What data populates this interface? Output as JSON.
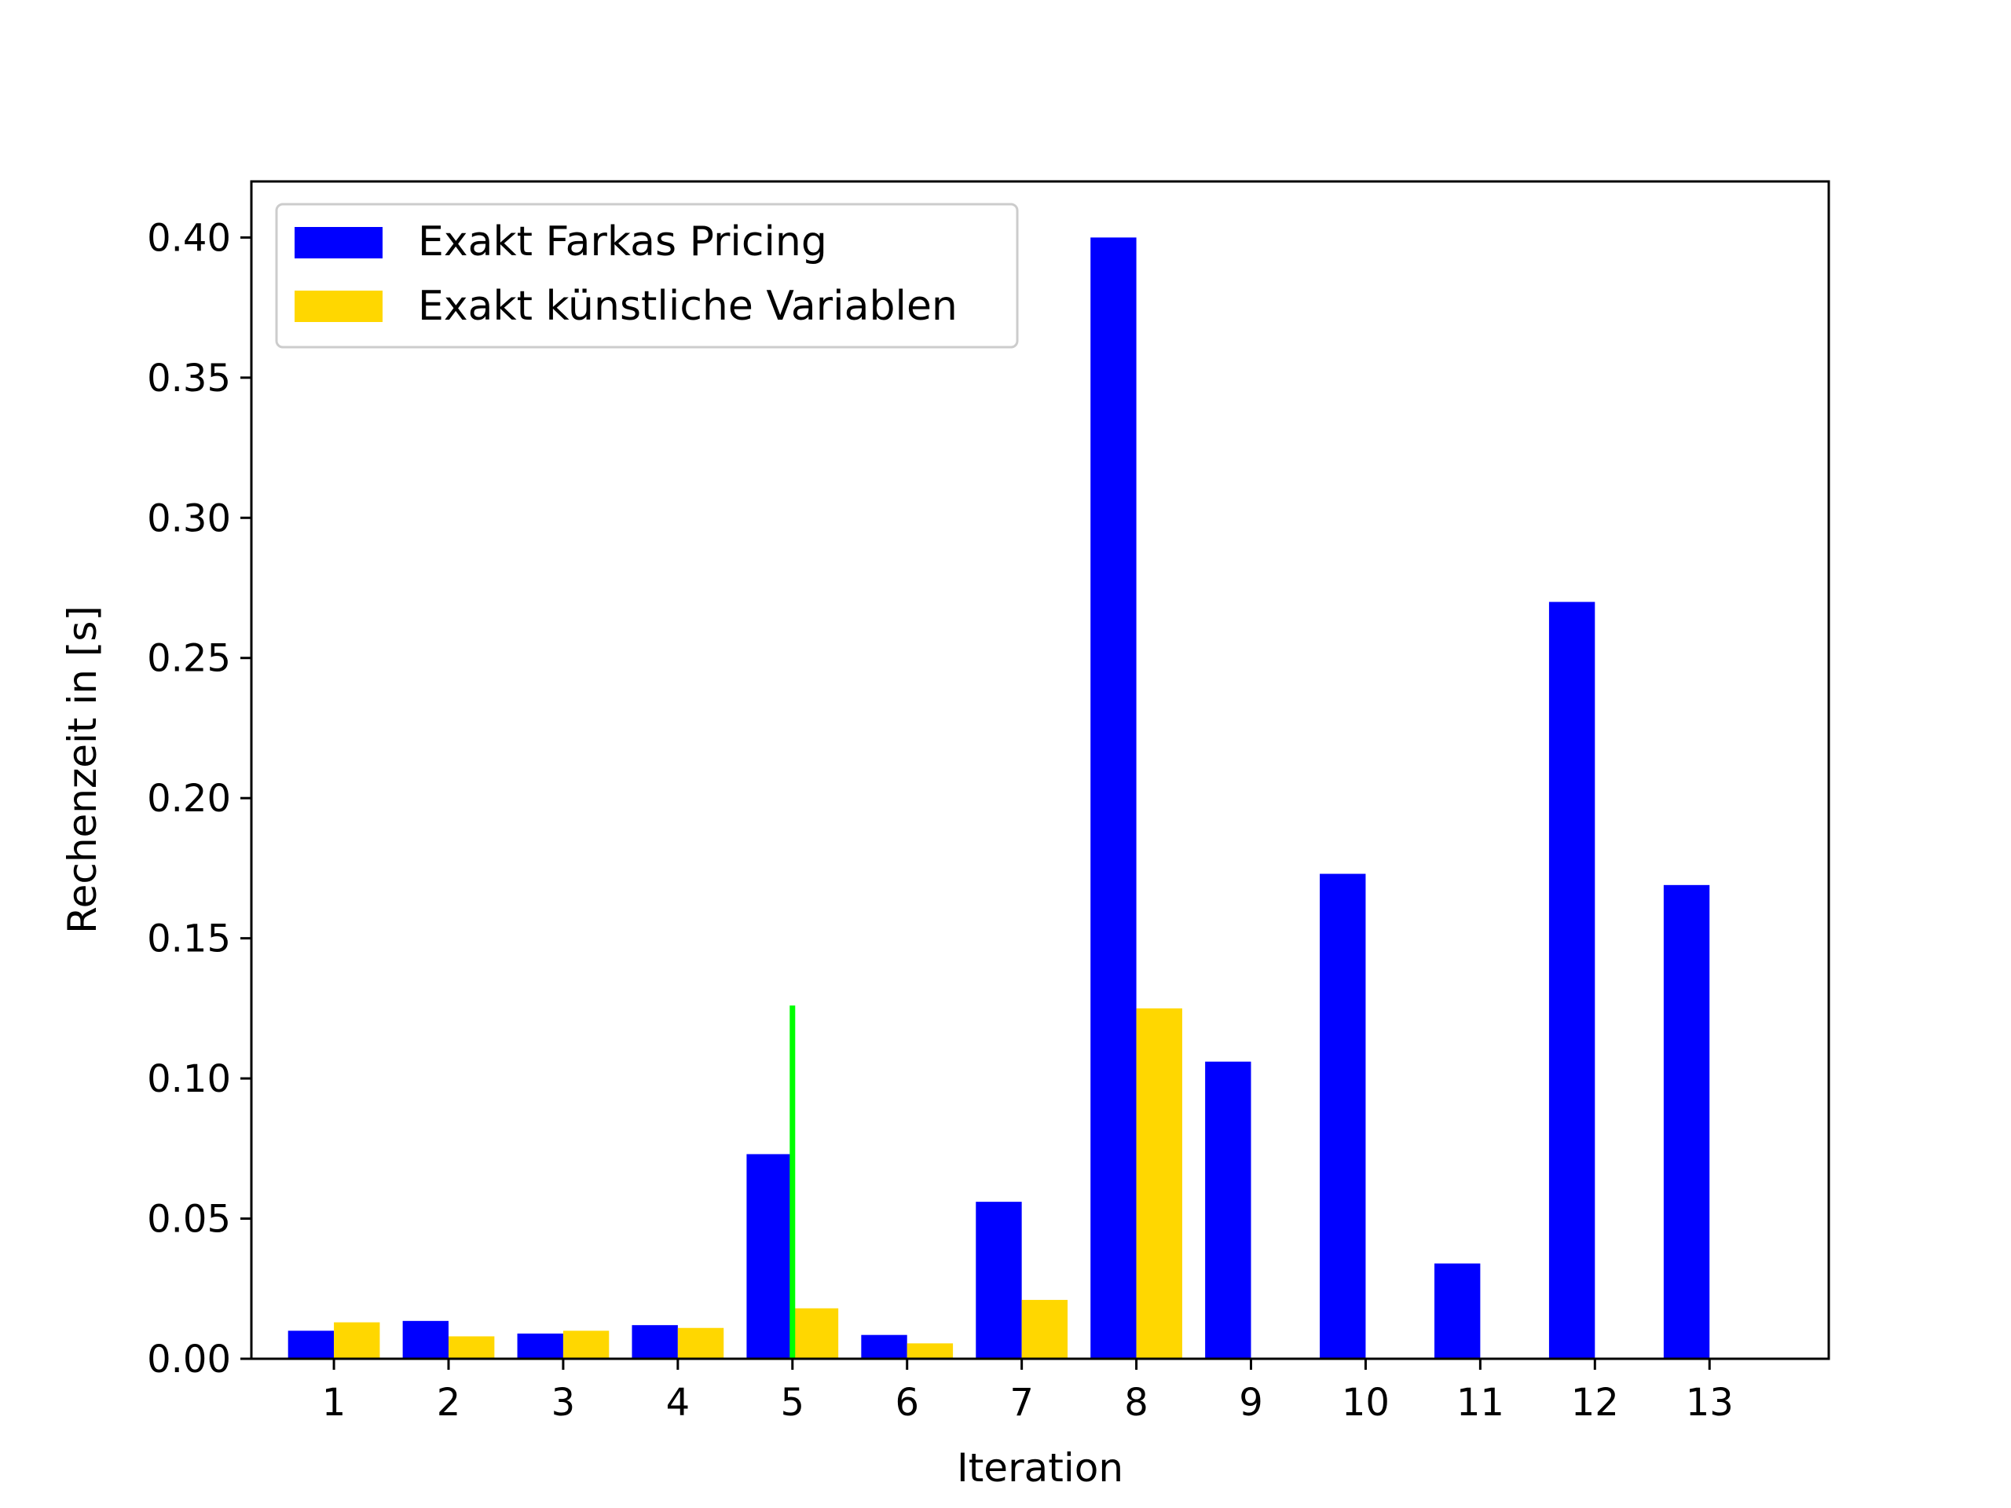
{
  "chart_data": {
    "type": "bar",
    "title": "",
    "xlabel": "Iteration",
    "ylabel": "Rechenzeit in [s]",
    "categories": [
      "1",
      "2",
      "3",
      "4",
      "5",
      "6",
      "7",
      "8",
      "9",
      "10",
      "11",
      "12",
      "13"
    ],
    "ylim": [
      0,
      0.42
    ],
    "yticks": [
      "0.00",
      "0.05",
      "0.10",
      "0.15",
      "0.20",
      "0.25",
      "0.30",
      "0.35",
      "0.40"
    ],
    "grid": false,
    "legend_position": "top-left",
    "series": [
      {
        "name": "Exakt Farkas Pricing",
        "color": "#0000ff",
        "values": [
          0.01,
          0.0135,
          0.009,
          0.012,
          0.073,
          0.0085,
          0.056,
          0.4,
          0.106,
          0.173,
          0.034,
          0.27,
          0.169
        ]
      },
      {
        "name": "Exakt künstliche Variablen",
        "color": "#ffd700",
        "values": [
          0.013,
          0.008,
          0.01,
          0.011,
          0.018,
          0.0055,
          0.021,
          0.125,
          null,
          null,
          null,
          null,
          null
        ]
      }
    ],
    "annotations": [
      {
        "type": "vertical-line",
        "category": "5",
        "y_start": 0,
        "y_end": 0.126,
        "color": "#00ff00"
      }
    ]
  }
}
